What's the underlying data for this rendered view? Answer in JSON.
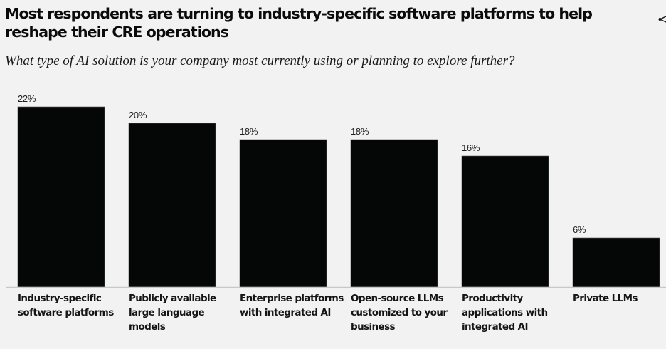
{
  "header": {
    "title": "Most respondents are turning to industry-specific software platforms to help reshape their CRE operations",
    "subtitle": "What type of AI solution is your company most currently using or planning to explore further?",
    "share_icon": "share-icon"
  },
  "chart_data": {
    "type": "bar",
    "title": "Most respondents are turning to industry-specific software platforms to help reshape their CRE operations",
    "subtitle": "What type of AI solution is your company most currently using or planning to explore further?",
    "xlabel": "",
    "ylabel": "",
    "categories": [
      "Industry-specific software platforms",
      "Publicly available large language models",
      "Enterprise platforms with integrated AI",
      "Open-source LLMs customized to your business",
      "Productivity applications with integrated AI",
      "Private LLMs"
    ],
    "category_lines": [
      [
        "Industry-specific",
        "software platforms"
      ],
      [
        "Publicly available",
        "large language",
        "models"
      ],
      [
        "Enterprise platforms",
        "with integrated AI"
      ],
      [
        "Open-source LLMs",
        "customized to your",
        "business"
      ],
      [
        "Productivity",
        "applications with",
        "integrated AI"
      ],
      [
        "Private LLMs"
      ]
    ],
    "values": [
      22,
      20,
      18,
      18,
      16,
      6
    ],
    "data_labels": [
      "22%",
      "20%",
      "18%",
      "18%",
      "16%",
      "6%"
    ],
    "unit": "%",
    "ylim": [
      0,
      22
    ],
    "grid": false,
    "legend": "none",
    "bar_color": "#050606",
    "baseline_color": "#c8c8c8"
  }
}
